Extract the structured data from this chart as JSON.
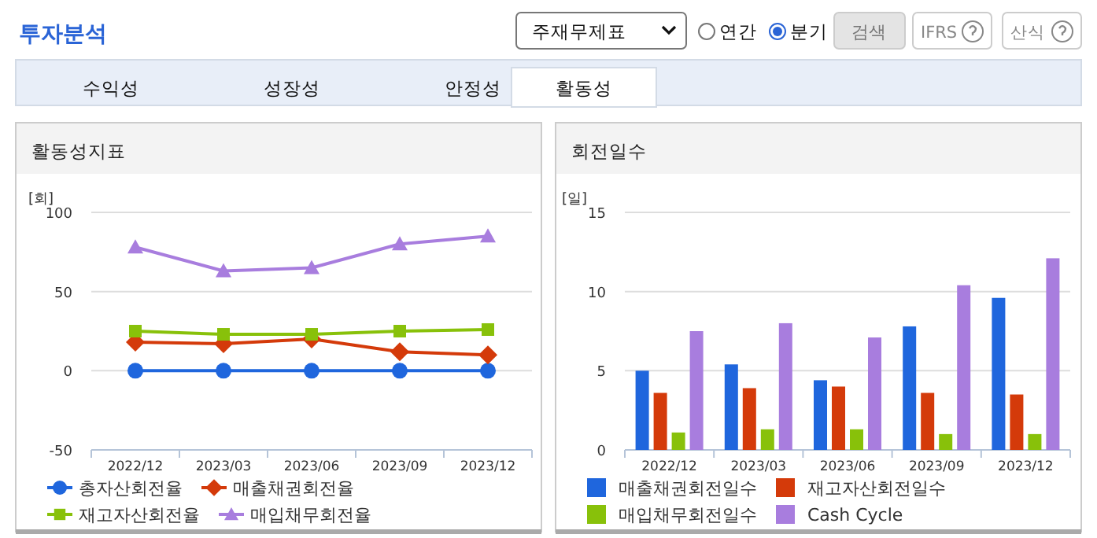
{
  "chart_data": [
    {
      "type": "other",
      "title": "투자분석",
      "annotations": [
        "주재무제표",
        "연간",
        "분기",
        "검색",
        "IFRS",
        "산식",
        "수익성",
        "성장성",
        "안정성",
        "활동성"
      ]
    },
    {
      "type": "line",
      "title": "활동성지표",
      "ylabel": "[회]",
      "categories": [
        "2022/12",
        "2023/03",
        "2023/06",
        "2023/09",
        "2023/12"
      ],
      "ylim": [
        -50,
        100
      ],
      "yticks": [
        -50,
        0,
        50,
        100
      ],
      "grid": "y",
      "legend": "bottom",
      "series": [
        {
          "name": "총자산회전율",
          "color": "#1f66dd",
          "marker": "circle",
          "values": [
            0,
            0,
            0,
            0,
            0
          ]
        },
        {
          "name": "매출채권회전율",
          "color": "#d43a0a",
          "marker": "diamond",
          "values": [
            18,
            17,
            20,
            12,
            10
          ]
        },
        {
          "name": "재고자산회전율",
          "color": "#88c10a",
          "marker": "square",
          "values": [
            25,
            23,
            23,
            25,
            26
          ]
        },
        {
          "name": "매입채무회전율",
          "color": "#a87dde",
          "marker": "triangle",
          "values": [
            78,
            63,
            65,
            80,
            85
          ]
        }
      ]
    },
    {
      "type": "bar",
      "title": "회전일수",
      "ylabel": "[일]",
      "categories": [
        "2022/12",
        "2023/03",
        "2023/06",
        "2023/09",
        "2023/12"
      ],
      "ylim": [
        0,
        15
      ],
      "yticks": [
        0,
        5,
        10,
        15
      ],
      "grid": "y",
      "legend": "bottom",
      "series": [
        {
          "name": "매출채권회전일수",
          "color": "#1f66dd",
          "values": [
            5.0,
            5.4,
            4.4,
            7.8,
            9.6
          ]
        },
        {
          "name": "재고자산회전일수",
          "color": "#d43a0a",
          "values": [
            3.6,
            3.9,
            4.0,
            3.6,
            3.5
          ]
        },
        {
          "name": "매입채무회전일수",
          "color": "#88c10a",
          "values": [
            1.1,
            1.3,
            1.3,
            1.0,
            1.0
          ]
        },
        {
          "name": "Cash Cycle",
          "color": "#a87dde",
          "values": [
            7.5,
            8.0,
            7.1,
            10.4,
            12.1
          ]
        }
      ]
    }
  ]
}
